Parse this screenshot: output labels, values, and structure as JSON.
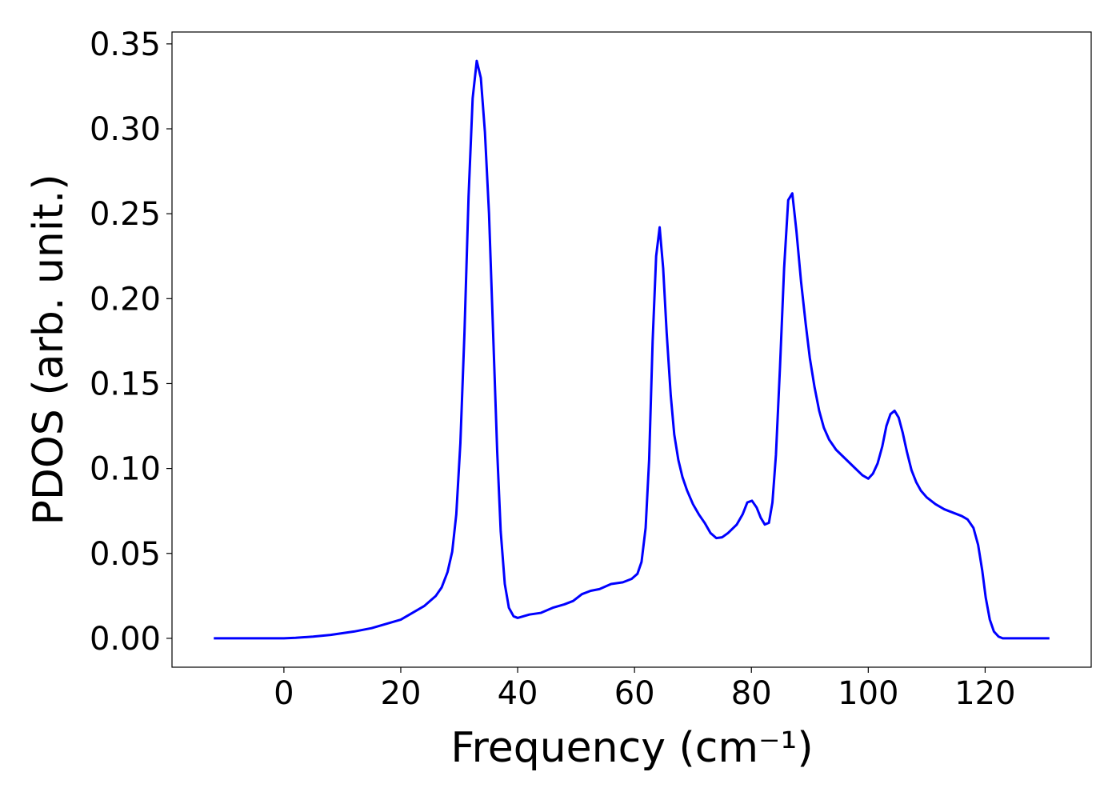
{
  "chart_data": {
    "type": "line",
    "x_label": "Frequency (cm⁻¹)",
    "y_label": "PDOS (arb. unit.)",
    "xlim": [
      -19.15,
      138.15
    ],
    "ylim": [
      -0.017,
      0.357
    ],
    "xticks": [
      0,
      20,
      40,
      60,
      80,
      100,
      120
    ],
    "yticks": [
      {
        "value": 0,
        "label": "0.00"
      },
      0.05,
      {
        "value": 0.1,
        "label": "0.10"
      },
      0.15,
      {
        "value": 0.2,
        "label": "0.20"
      },
      0.25,
      {
        "value": 0.3,
        "label": "0.30"
      },
      0.35
    ],
    "grid": false,
    "x": [
      -12,
      0,
      2,
      5,
      8,
      10,
      12,
      15,
      18,
      20,
      22,
      24,
      26,
      27,
      28,
      28.8,
      29.5,
      30.2,
      30.9,
      31.6,
      32.3,
      33.0,
      33.7,
      34.4,
      35.1,
      35.8,
      36.5,
      37.1,
      37.8,
      38.5,
      39.3,
      40,
      41,
      42,
      44,
      46,
      48,
      49.5,
      51,
      52.5,
      54,
      56,
      58,
      59.5,
      60.5,
      61.2,
      61.9,
      62.5,
      63.1,
      63.7,
      64.3,
      64.9,
      65.5,
      66.2,
      66.8,
      67.5,
      68.2,
      69,
      70,
      71,
      72,
      73,
      74,
      75,
      76,
      77.5,
      78.5,
      79.3,
      80.1,
      80.9,
      81.6,
      82.3,
      83,
      83.6,
      84.2,
      84.9,
      85.6,
      86.3,
      87,
      87.7,
      88.5,
      89.3,
      90,
      90.8,
      91.6,
      92.4,
      93.3,
      94.5,
      96,
      97.5,
      99,
      100,
      100.8,
      101.6,
      102.4,
      103.1,
      103.8,
      104.5,
      105.2,
      105.9,
      106.6,
      107.4,
      108.2,
      109,
      110,
      111.5,
      113,
      114.5,
      116,
      117,
      118,
      118.8,
      119.5,
      120.1,
      120.8,
      121.5,
      122.3,
      123,
      125,
      131
    ],
    "series": [
      {
        "name": "PDOS",
        "color": "#0000ff",
        "values": [
          0,
          0,
          0.0003,
          0.001,
          0.002,
          0.003,
          0.004,
          0.006,
          0.009,
          0.011,
          0.015,
          0.019,
          0.025,
          0.03,
          0.039,
          0.051,
          0.073,
          0.115,
          0.18,
          0.26,
          0.318,
          0.34,
          0.33,
          0.298,
          0.25,
          0.18,
          0.11,
          0.063,
          0.032,
          0.018,
          0.013,
          0.012,
          0.013,
          0.014,
          0.015,
          0.018,
          0.02,
          0.022,
          0.026,
          0.028,
          0.029,
          0.032,
          0.033,
          0.035,
          0.038,
          0.045,
          0.065,
          0.105,
          0.175,
          0.225,
          0.242,
          0.218,
          0.18,
          0.143,
          0.12,
          0.105,
          0.095,
          0.087,
          0.079,
          0.073,
          0.068,
          0.062,
          0.059,
          0.0595,
          0.062,
          0.067,
          0.073,
          0.08,
          0.081,
          0.077,
          0.071,
          0.067,
          0.068,
          0.08,
          0.108,
          0.16,
          0.218,
          0.258,
          0.262,
          0.24,
          0.21,
          0.185,
          0.165,
          0.148,
          0.134,
          0.124,
          0.117,
          0.111,
          0.106,
          0.101,
          0.096,
          0.094,
          0.097,
          0.103,
          0.113,
          0.125,
          0.132,
          0.134,
          0.13,
          0.121,
          0.11,
          0.099,
          0.092,
          0.087,
          0.083,
          0.079,
          0.076,
          0.074,
          0.072,
          0.07,
          0.065,
          0.055,
          0.04,
          0.024,
          0.011,
          0.004,
          0.001,
          0,
          0,
          0
        ]
      }
    ]
  }
}
